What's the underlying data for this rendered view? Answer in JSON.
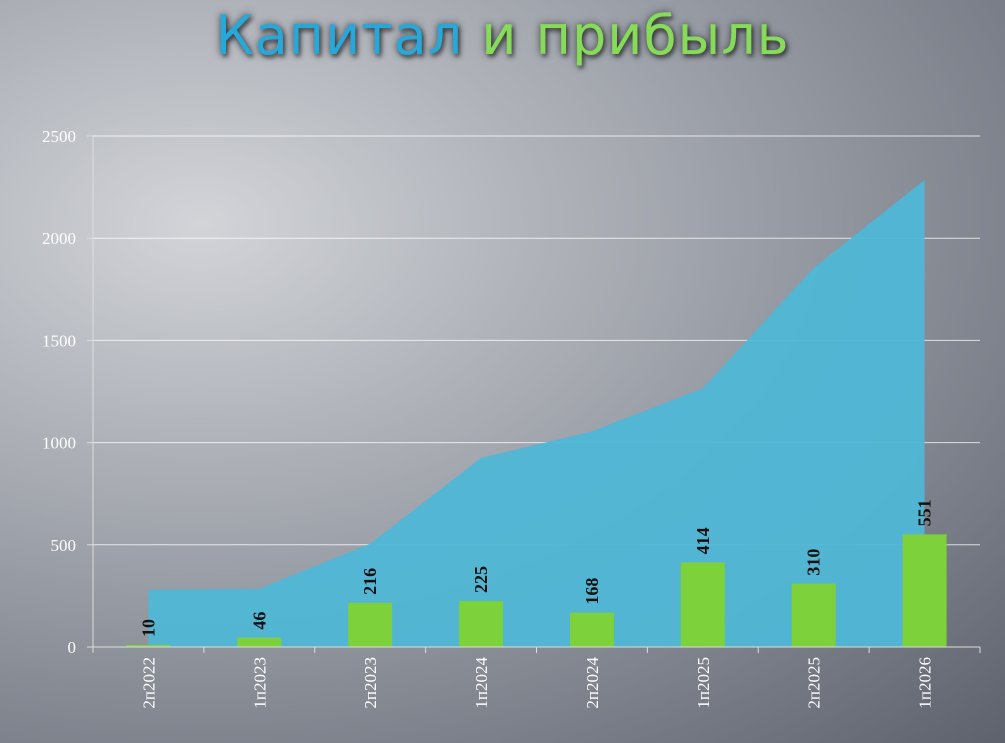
{
  "chart_data": {
    "type": "bar",
    "title": [
      "Капитал",
      "и прибыль"
    ],
    "categories": [
      "2п2022",
      "1п2023",
      "2п2023",
      "1п2024",
      "2п2024",
      "1п2025",
      "2п2025",
      "1п2026"
    ],
    "series": [
      {
        "type": "area",
        "color": "#4fb7d6",
        "values": [
          280,
          285,
          505,
          925,
          1055,
          1265,
          1855,
          2285
        ]
      },
      {
        "type": "bar",
        "color": "#7dd13a",
        "values": [
          10,
          46,
          216,
          225,
          168,
          414,
          310,
          551
        ],
        "data_labels": true
      }
    ],
    "ylim": [
      0,
      2500
    ],
    "yticks": [
      0,
      500,
      1000,
      1500,
      2000,
      2500
    ],
    "grid": true
  }
}
